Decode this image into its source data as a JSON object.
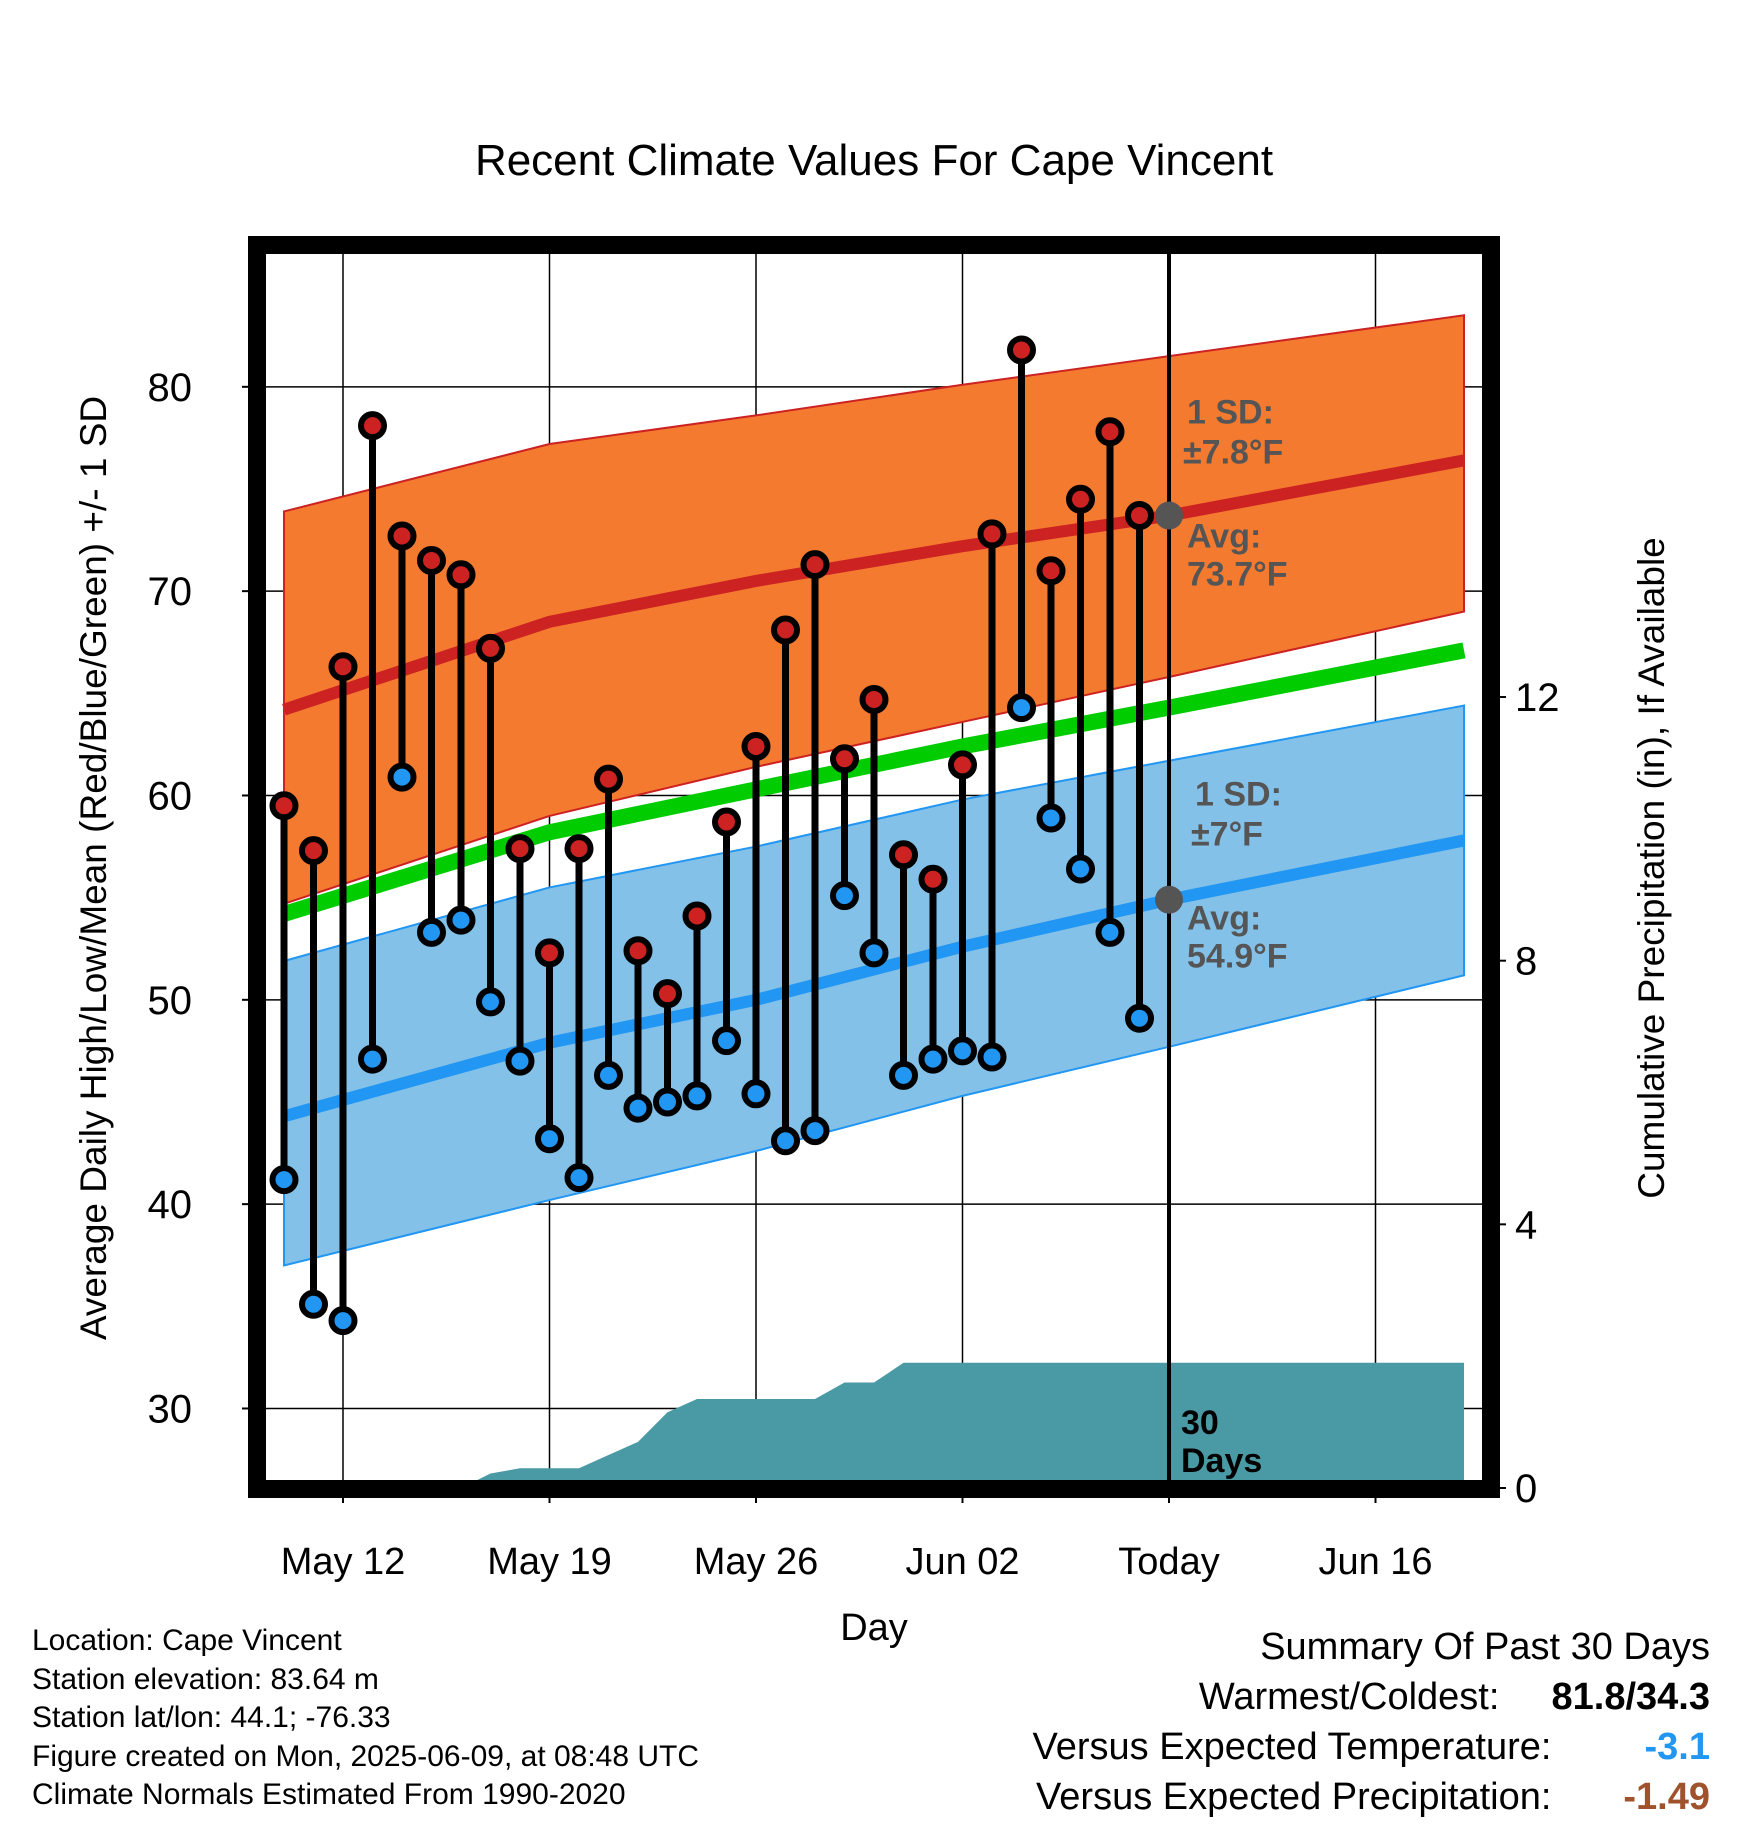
{
  "chart_data": {
    "type": "line",
    "title": "Recent Climate Values For Cape Vincent",
    "xlabel": "Day",
    "ylabel": "Average Daily High/Low/Mean (Red/Blue/Green) +/- 1 SD",
    "y2label": "Cumulative Precipitation (in), If Available",
    "x_start": "2025-05-10",
    "x_end": "2025-06-19",
    "today": "2025-06-09",
    "ylim": [
      26.5,
      86.5
    ],
    "yticks": [
      30,
      40,
      50,
      60,
      70,
      80
    ],
    "y2lim": [
      0,
      18.6
    ],
    "y2ticks": [
      0,
      4,
      8,
      12
    ],
    "xticks": [
      {
        "date": "2025-05-12",
        "label": "May 12"
      },
      {
        "date": "2025-05-19",
        "label": "May 19"
      },
      {
        "date": "2025-05-26",
        "label": "May 26"
      },
      {
        "date": "2025-06-02",
        "label": "Jun 02"
      },
      {
        "date": "2025-06-09",
        "label": "Today"
      },
      {
        "date": "2025-06-16",
        "label": "Jun 16"
      }
    ],
    "grid": true,
    "normals": {
      "dates": [
        "2025-05-10",
        "2025-05-19",
        "2025-05-26",
        "2025-06-02",
        "2025-06-09",
        "2025-06-19"
      ],
      "high_mean": [
        64.2,
        68.5,
        70.5,
        72.2,
        73.7,
        76.4
      ],
      "high_upper": [
        73.9,
        77.2,
        78.6,
        80.1,
        81.5,
        83.5
      ],
      "high_lower": [
        54.7,
        59.0,
        61.4,
        63.6,
        65.8,
        69.0
      ],
      "low_mean": [
        44.3,
        47.9,
        50.0,
        52.6,
        54.9,
        57.8
      ],
      "low_upper": [
        51.9,
        55.5,
        57.5,
        59.8,
        61.7,
        64.4
      ],
      "low_lower": [
        37.0,
        40.2,
        42.6,
        45.3,
        47.7,
        51.2
      ],
      "daily_mean": [
        54.2,
        58.2,
        60.3,
        62.4,
        64.3,
        67.1
      ]
    },
    "series": [
      {
        "name": "High",
        "color": "#cc2222",
        "dates": [
          "2025-05-10",
          "2025-05-11",
          "2025-05-12",
          "2025-05-13",
          "2025-05-14",
          "2025-05-15",
          "2025-05-16",
          "2025-05-17",
          "2025-05-18",
          "2025-05-19",
          "2025-05-20",
          "2025-05-21",
          "2025-05-22",
          "2025-05-23",
          "2025-05-24",
          "2025-05-25",
          "2025-05-26",
          "2025-05-27",
          "2025-05-28",
          "2025-05-29",
          "2025-05-30",
          "2025-05-31",
          "2025-06-01",
          "2025-06-02",
          "2025-06-03",
          "2025-06-04",
          "2025-06-05",
          "2025-06-06",
          "2025-06-07",
          "2025-06-08"
        ],
        "values": [
          59.5,
          57.3,
          66.3,
          78.1,
          72.7,
          71.5,
          70.8,
          67.2,
          57.4,
          52.3,
          57.4,
          60.8,
          52.4,
          50.3,
          54.1,
          58.7,
          62.4,
          68.1,
          71.3,
          61.8,
          64.7,
          57.1,
          55.9,
          61.5,
          72.8,
          81.8,
          71.0,
          74.5,
          77.8,
          73.7
        ]
      },
      {
        "name": "Low",
        "color": "#2196f3",
        "dates": [
          "2025-05-10",
          "2025-05-11",
          "2025-05-12",
          "2025-05-13",
          "2025-05-14",
          "2025-05-15",
          "2025-05-16",
          "2025-05-17",
          "2025-05-18",
          "2025-05-19",
          "2025-05-20",
          "2025-05-21",
          "2025-05-22",
          "2025-05-23",
          "2025-05-24",
          "2025-05-25",
          "2025-05-26",
          "2025-05-27",
          "2025-05-28",
          "2025-05-29",
          "2025-05-30",
          "2025-05-31",
          "2025-06-01",
          "2025-06-02",
          "2025-06-03",
          "2025-06-04",
          "2025-06-05",
          "2025-06-06",
          "2025-06-07",
          "2025-06-08"
        ],
        "values": [
          41.2,
          35.1,
          34.3,
          47.1,
          60.9,
          53.3,
          53.9,
          49.9,
          47.0,
          43.2,
          41.3,
          46.3,
          44.7,
          45.0,
          45.3,
          48.0,
          45.4,
          43.1,
          43.6,
          55.1,
          52.3,
          46.3,
          47.1,
          47.5,
          47.2,
          64.3,
          58.9,
          56.4,
          53.3,
          49.1
        ]
      },
      {
        "name": "Cumulative Precipitation",
        "color": "#4a9aa5",
        "dates": [
          "2025-05-10",
          "2025-05-15",
          "2025-05-16",
          "2025-05-17",
          "2025-05-18",
          "2025-05-20",
          "2025-05-21",
          "2025-05-22",
          "2025-05-23",
          "2025-05-24",
          "2025-05-25",
          "2025-05-27",
          "2025-05-28",
          "2025-05-29",
          "2025-05-30",
          "2025-05-31",
          "2025-06-01",
          "2025-06-09",
          "2025-06-19"
        ],
        "values": [
          0,
          0,
          0,
          0.22,
          0.3,
          0.3,
          0.5,
          0.7,
          1.15,
          1.35,
          1.35,
          1.35,
          1.35,
          1.6,
          1.6,
          1.9,
          1.9,
          1.9,
          1.9
        ]
      }
    ],
    "annotations": {
      "high_sd_line1": "1 SD:",
      "high_sd_line2": "±7.8°F",
      "high_avg_line1": "Avg:",
      "high_avg_line2": "73.7°F",
      "high_avg_value": 73.7,
      "low_sd_line1": "1 SD:",
      "low_sd_line2": "±7°F",
      "low_avg_line1": "Avg:",
      "low_avg_line2": "54.9°F",
      "low_avg_value": 54.9,
      "window_line1": "30",
      "window_line2": "Days"
    },
    "colors": {
      "high_band": "#f47a30",
      "high_line": "#cc2222",
      "low_band": "#83c1e8",
      "low_line": "#2196f3",
      "mean_line": "#00cc00",
      "precip": "#4a9aa5",
      "annotation_text": "#555555"
    }
  },
  "footer": {
    "location": "Location: Cape Vincent",
    "elevation": "Station elevation: 83.64 m",
    "latlon": "Station lat/lon: 44.1; -76.33",
    "created": "Figure created on Mon, 2025-06-09, at 08:48 UTC",
    "normals": "Climate Normals Estimated From 1990-2020"
  },
  "summary": {
    "heading": "Summary Of Past 30 Days",
    "warmest_label": "Warmest/Coldest:",
    "warmest_value": "81.8/34.3",
    "temp_label": "Versus Expected Temperature:",
    "temp_value": "-3.1",
    "temp_color": "#2196f3",
    "precip_label": "Versus Expected Precipitation:",
    "precip_value": "-1.49",
    "precip_color": "#a0522d"
  }
}
